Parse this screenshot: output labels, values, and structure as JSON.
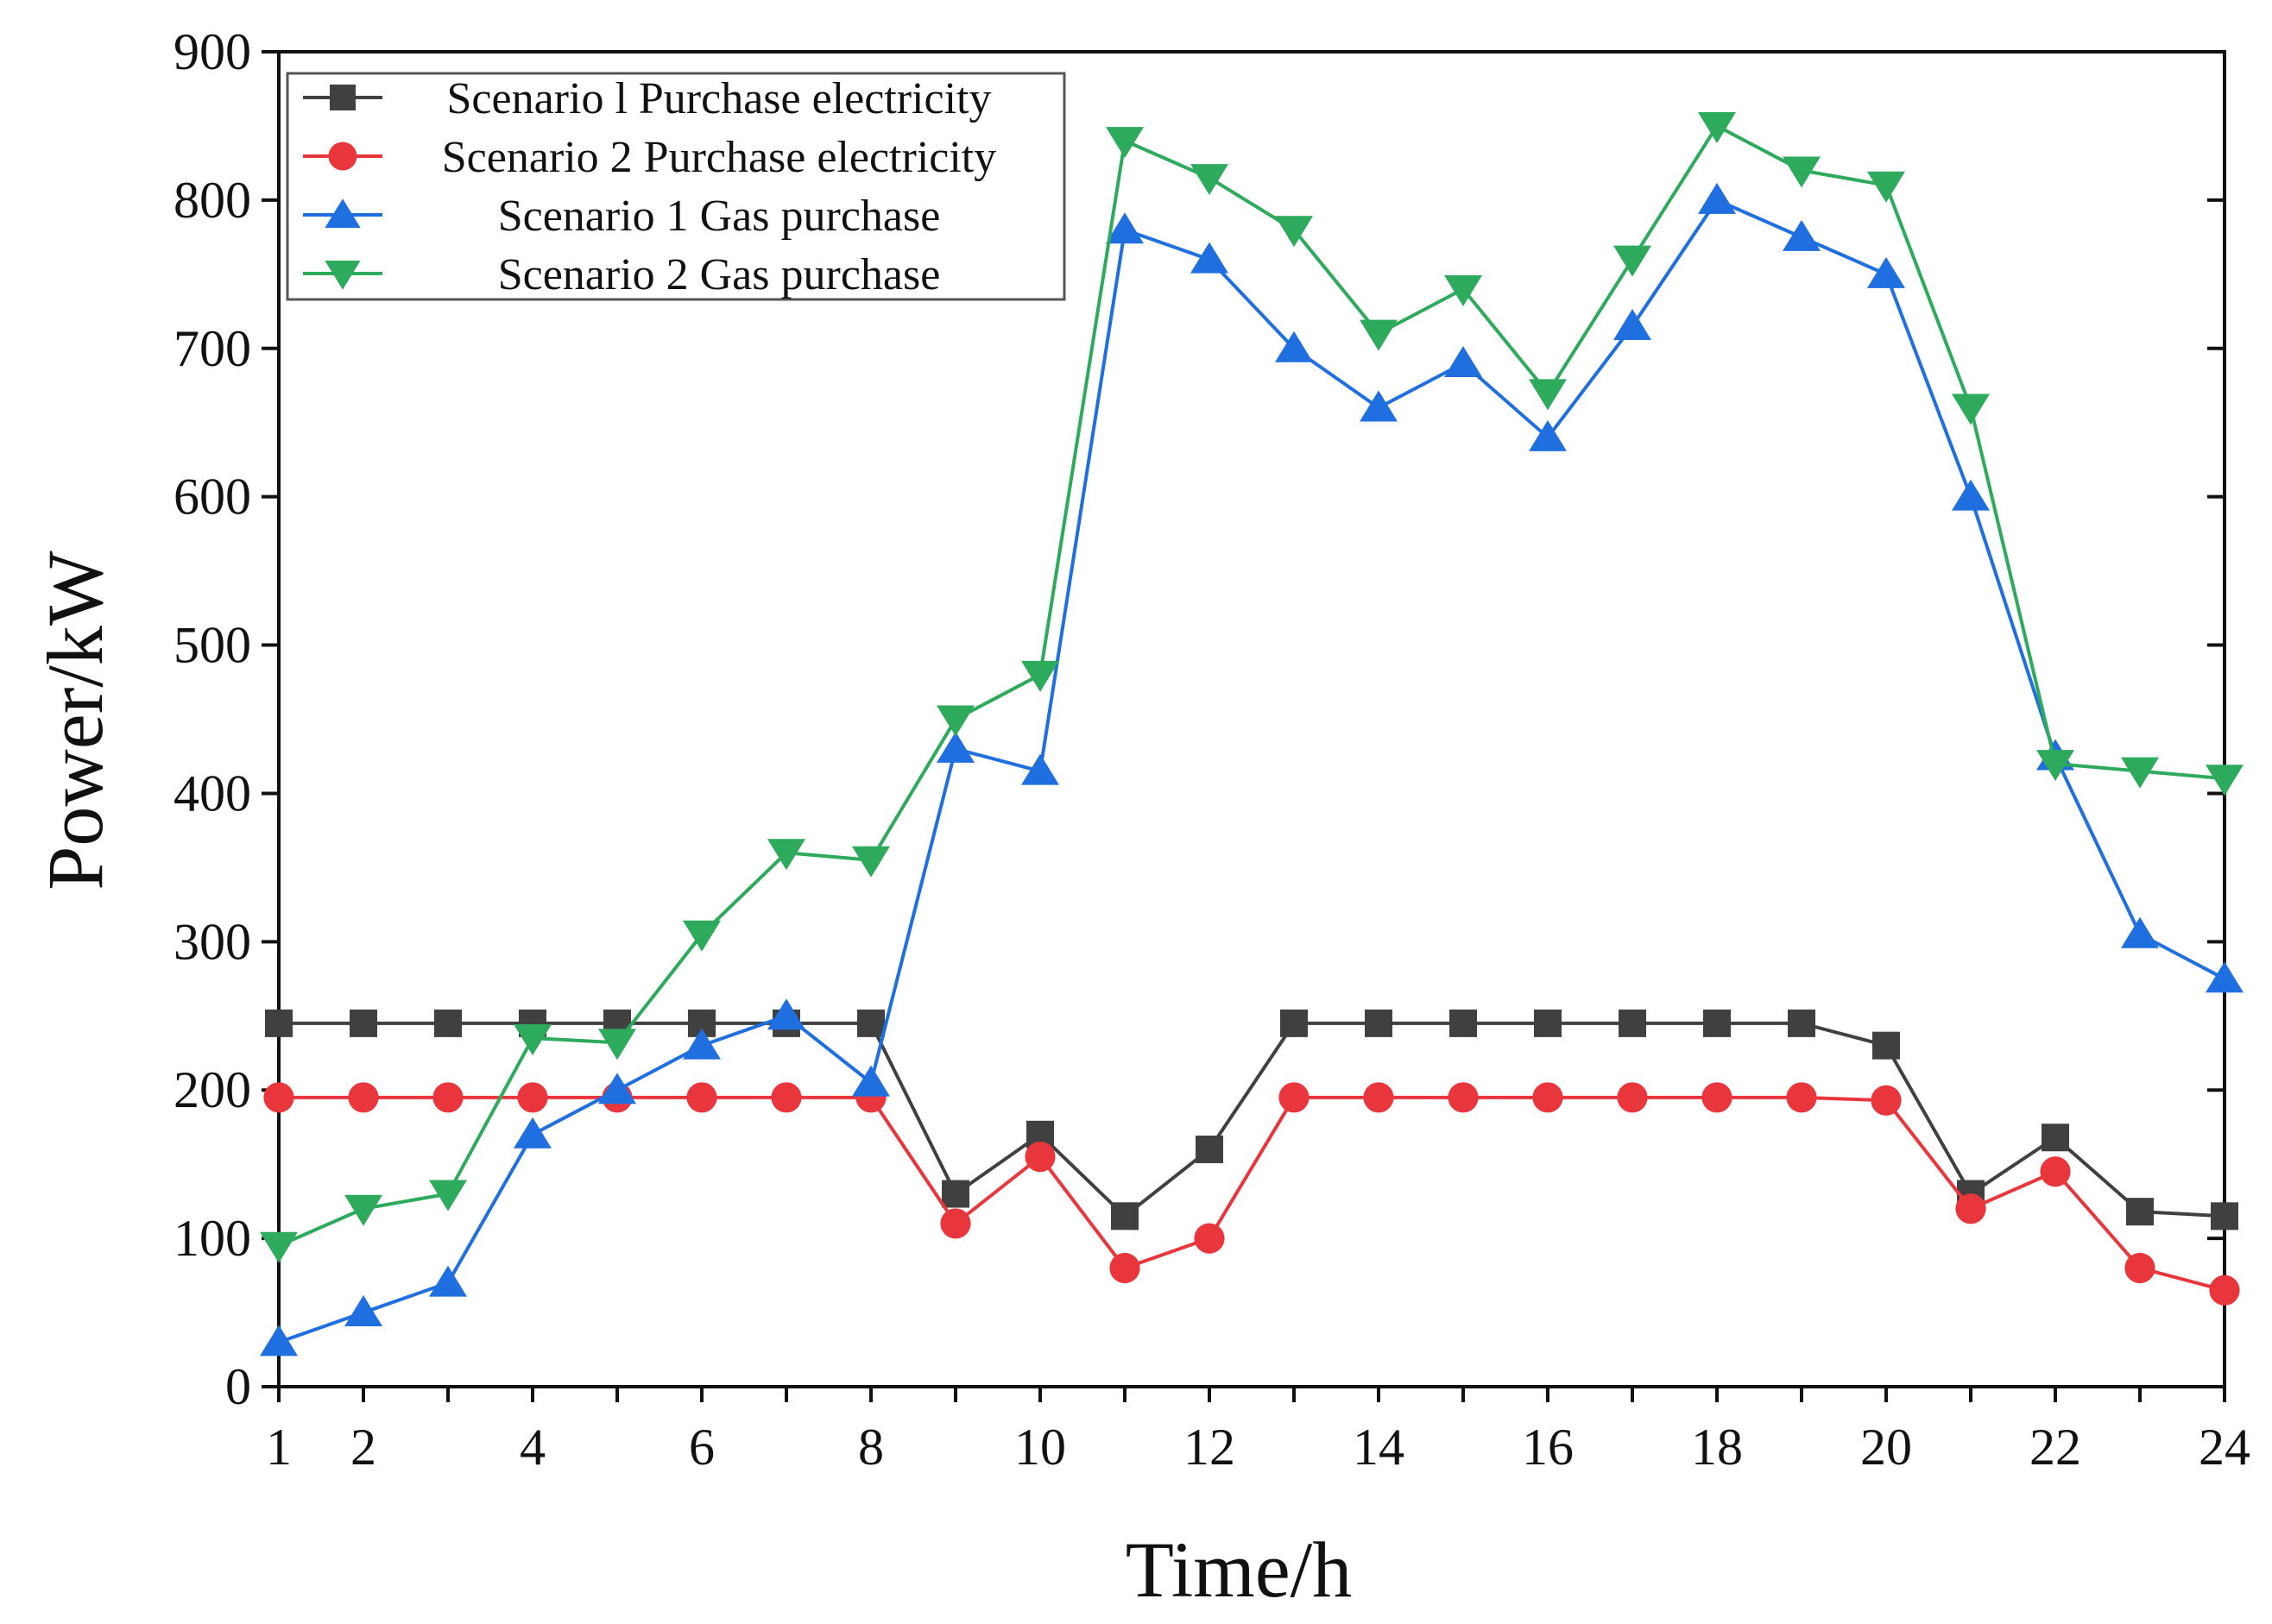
{
  "chart_data": {
    "type": "line",
    "title": "",
    "xlabel": "Time/h",
    "ylabel": "Power/kW",
    "xlim": [
      1,
      24
    ],
    "ylim": [
      0,
      900
    ],
    "x": [
      1,
      2,
      3,
      4,
      5,
      6,
      7,
      8,
      9,
      10,
      11,
      12,
      13,
      14,
      15,
      16,
      17,
      18,
      19,
      20,
      21,
      22,
      23,
      24
    ],
    "x_tick_labels": [
      "1",
      "2",
      "4",
      "6",
      "8",
      "10",
      "12",
      "14",
      "16",
      "18",
      "20",
      "22",
      "24"
    ],
    "y_tick_labels": [
      "0",
      "100",
      "200",
      "300",
      "400",
      "500",
      "600",
      "700",
      "800",
      "900"
    ],
    "grid": false,
    "legend_position": "top-left",
    "series": [
      {
        "name": "Scenario l Purchase electricity",
        "color": "#404040",
        "marker": "square",
        "values": [
          245,
          245,
          245,
          245,
          245,
          245,
          245,
          245,
          130,
          170,
          115,
          160,
          245,
          245,
          245,
          245,
          245,
          245,
          245,
          230,
          130,
          168,
          118,
          115
        ]
      },
      {
        "name": "Scenario 2 Purchase electricity",
        "color": "#e8363c",
        "marker": "circle",
        "values": [
          195,
          195,
          195,
          195,
          195,
          195,
          195,
          195,
          110,
          155,
          80,
          100,
          195,
          195,
          195,
          195,
          195,
          195,
          195,
          193,
          120,
          145,
          80,
          65
        ]
      },
      {
        "name": "Scenario 1 Gas purchase",
        "color": "#1f6fe0",
        "marker": "triangle-up",
        "values": [
          30,
          50,
          70,
          170,
          200,
          230,
          250,
          205,
          430,
          415,
          780,
          760,
          700,
          660,
          690,
          640,
          715,
          800,
          775,
          750,
          600,
          425,
          305,
          275
        ]
      },
      {
        "name": "Scenario 2 Gas purchase",
        "color": "#2eaa5c",
        "marker": "triangle-down",
        "values": [
          95,
          120,
          130,
          235,
          232,
          305,
          360,
          355,
          450,
          480,
          840,
          815,
          780,
          710,
          740,
          670,
          760,
          850,
          820,
          810,
          660,
          420,
          415,
          410
        ]
      }
    ]
  }
}
